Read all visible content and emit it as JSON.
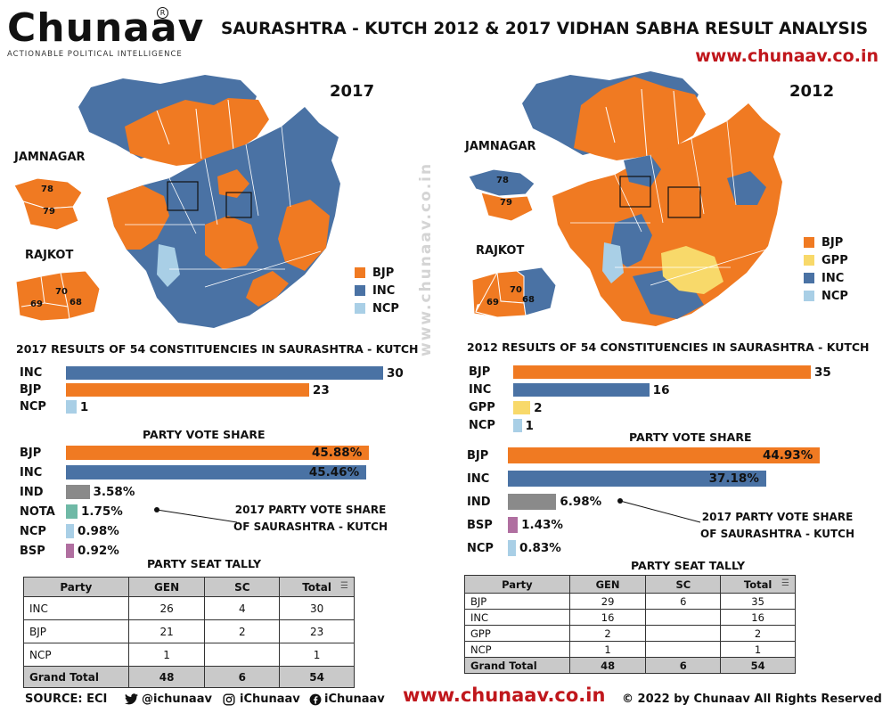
{
  "header": {
    "logo": "Chunaav",
    "logo_mark": "R",
    "tagline": "ACTIONABLE POLITICAL INTELLIGENCE",
    "title": "SAURASHTRA - KUTCH 2012 & 2017 VIDHAN SABHA RESULT ANALYSIS",
    "website": "www.chunaav.co.in"
  },
  "watermark": "www.chunaav.co.in",
  "colors": {
    "BJP": "#f07a22",
    "INC": "#4a72a4",
    "NCP": "#a9cfe6",
    "GPP": "#f8d96a",
    "IND": "#8a8a8a",
    "NOTA": "#6fb9a6",
    "BSP": "#b06fa0",
    "accent_red": "#c0171c"
  },
  "left": {
    "year": "2017",
    "map": {
      "jamnagar_label": "JAMNAGAR",
      "rajkot_label": "RAJKOT",
      "jamnagar_nums": [
        "78",
        "79"
      ],
      "rajkot_nums": [
        "70",
        "69",
        "68"
      ]
    },
    "legend": [
      "BJP",
      "INC",
      "NCP"
    ],
    "seats_title": "2017 RESULTS OF 54 CONSTITUENCIES IN SAURASHTRA - KUTCH",
    "vote_title": "PARTY VOTE SHARE",
    "annotation": [
      "2017 PARTY VOTE SHARE",
      "OF SAURASHTRA - KUTCH"
    ],
    "tally_title": "PARTY SEAT TALLY",
    "tally": {
      "headers": [
        "Party",
        "GEN",
        "SC",
        "Total"
      ],
      "rows": [
        [
          "INC",
          "26",
          "4",
          "30"
        ],
        [
          "BJP",
          "21",
          "2",
          "23"
        ],
        [
          "NCP",
          "1",
          "",
          "1"
        ]
      ],
      "total": [
        "Grand Total",
        "48",
        "6",
        "54"
      ]
    }
  },
  "right": {
    "year": "2012",
    "map": {
      "jamnagar_label": "JAMNAGAR",
      "rajkot_label": "RAJKOT",
      "jamnagar_nums": [
        "78",
        "79"
      ],
      "rajkot_nums": [
        "70",
        "69",
        "68"
      ]
    },
    "legend": [
      "BJP",
      "GPP",
      "INC",
      "NCP"
    ],
    "seats_title": "2012 RESULTS OF 54 CONSTITUENCIES IN SAURASHTRA - KUTCH",
    "vote_title": "PARTY VOTE SHARE",
    "annotation": [
      "2017 PARTY VOTE SHARE",
      "OF SAURASHTRA - KUTCH"
    ],
    "tally_title": "PARTY SEAT TALLY",
    "tally": {
      "headers": [
        "Party",
        "GEN",
        "SC",
        "Total"
      ],
      "rows": [
        [
          "BJP",
          "29",
          "6",
          "35"
        ],
        [
          "INC",
          "16",
          "",
          "16"
        ],
        [
          "GPP",
          "2",
          "",
          "2"
        ],
        [
          "NCP",
          "1",
          "",
          "1"
        ]
      ],
      "total": [
        "Grand Total",
        "48",
        "6",
        "54"
      ]
    }
  },
  "chart_data": [
    {
      "type": "bar",
      "orientation": "horizontal",
      "title": "2017 RESULTS OF 54 CONSTITUENCIES IN SAURASHTRA - KUTCH",
      "categories": [
        "INC",
        "BJP",
        "NCP"
      ],
      "values": [
        30,
        23,
        1
      ],
      "labels": [
        "30",
        "23",
        "1"
      ]
    },
    {
      "type": "bar",
      "orientation": "horizontal",
      "title": "PARTY VOTE SHARE",
      "categories": [
        "BJP",
        "INC",
        "IND",
        "NOTA",
        "NCP",
        "BSP"
      ],
      "values": [
        45.88,
        45.46,
        3.58,
        1.75,
        0.98,
        0.92
      ],
      "labels": [
        "45.88%",
        "45.46%",
        "3.58%",
        "1.75%",
        "0.98%",
        "0.92%"
      ]
    },
    {
      "type": "bar",
      "orientation": "horizontal",
      "title": "2012 RESULTS OF 54 CONSTITUENCIES IN SAURASHTRA - KUTCH",
      "categories": [
        "BJP",
        "INC",
        "GPP",
        "NCP"
      ],
      "values": [
        35,
        16,
        2,
        1
      ],
      "labels": [
        "35",
        "16",
        "2",
        "1"
      ]
    },
    {
      "type": "bar",
      "orientation": "horizontal",
      "title": "PARTY VOTE SHARE",
      "categories": [
        "BJP",
        "INC",
        "IND",
        "BSP",
        "NCP"
      ],
      "values": [
        44.93,
        37.18,
        6.98,
        1.43,
        0.83
      ],
      "labels": [
        "44.93%",
        "37.18%",
        "6.98%",
        "1.43%",
        "0.83%"
      ]
    }
  ],
  "footer": {
    "source": "SOURCE: ECI",
    "twitter": "@ichunaav",
    "instagram": "iChunaav",
    "facebook": "iChunaav",
    "website": "www.chunaav.co.in",
    "copyright": "© 2022 by Chunaav All Rights Reserved"
  }
}
